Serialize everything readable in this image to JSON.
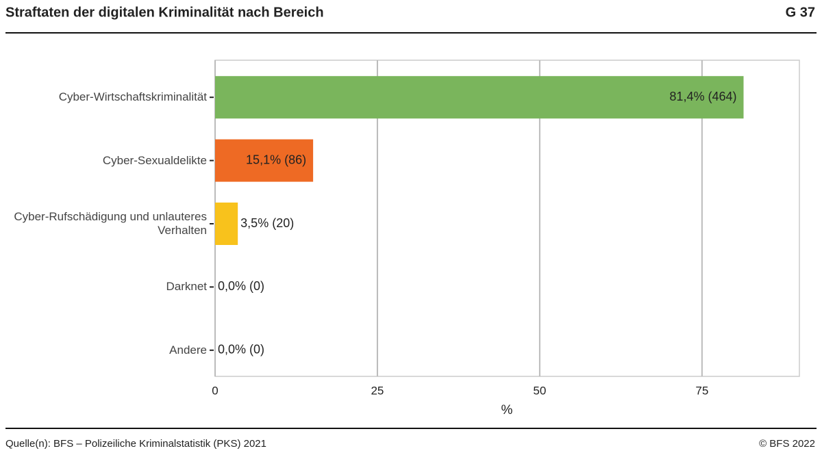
{
  "chart_data": {
    "type": "bar",
    "orientation": "horizontal",
    "title": "Straftaten der digitalen Kriminalität nach Bereich",
    "figure_number": "G 37",
    "categories": [
      "Cyber-Wirtschaftskriminalität",
      "Cyber-Sexualdelikte",
      "Cyber-Rufschädigung und unlauteres Verhalten",
      "Darknet",
      "Andere"
    ],
    "values": [
      81.4,
      15.1,
      3.5,
      0,
      0
    ],
    "value_labels": [
      "81,4% (464)",
      "15,1% (86)",
      "3,5% (20)",
      "0,0% (0)",
      "0,0% (0)"
    ],
    "colors": [
      "#7ab55c",
      "#ee6a24",
      "#f8c21c",
      "#888888",
      "#888888"
    ],
    "xlim": [
      0,
      90
    ],
    "xticks": [
      0,
      25,
      50,
      75
    ],
    "xlabel": "%",
    "grid": true,
    "source": "Quelle(n): BFS – Polizeiliche Kriminalstatistik (PKS) 2021",
    "copyright": "© BFS 2022"
  }
}
